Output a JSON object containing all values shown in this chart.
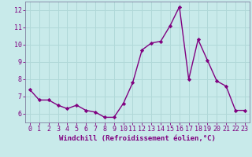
{
  "x": [
    0,
    1,
    2,
    3,
    4,
    5,
    6,
    7,
    8,
    9,
    10,
    11,
    12,
    13,
    14,
    15,
    16,
    17,
    18,
    19,
    20,
    21,
    22,
    23
  ],
  "y": [
    7.4,
    6.8,
    6.8,
    6.5,
    6.3,
    6.5,
    6.2,
    6.1,
    5.8,
    5.8,
    6.6,
    7.8,
    9.7,
    10.1,
    10.2,
    11.1,
    12.2,
    8.0,
    10.3,
    9.1,
    7.9,
    7.6,
    6.2,
    6.2
  ],
  "line_color": "#800080",
  "marker": "D",
  "marker_size": 2.2,
  "bg_color": "#c8eaea",
  "grid_color": "#b0d8d8",
  "ylim": [
    5.5,
    12.5
  ],
  "xlim": [
    -0.5,
    23.5
  ],
  "yticks": [
    6,
    7,
    8,
    9,
    10,
    11,
    12
  ],
  "xticks": [
    0,
    1,
    2,
    3,
    4,
    5,
    6,
    7,
    8,
    9,
    10,
    11,
    12,
    13,
    14,
    15,
    16,
    17,
    18,
    19,
    20,
    21,
    22,
    23
  ],
  "xlabel": "Windchill (Refroidissement éolien,°C)",
  "tick_color": "#800080",
  "label_fontsize": 6.5,
  "tick_fontsize": 6.0,
  "line_width": 1.0,
  "spine_color": "#8080a0"
}
